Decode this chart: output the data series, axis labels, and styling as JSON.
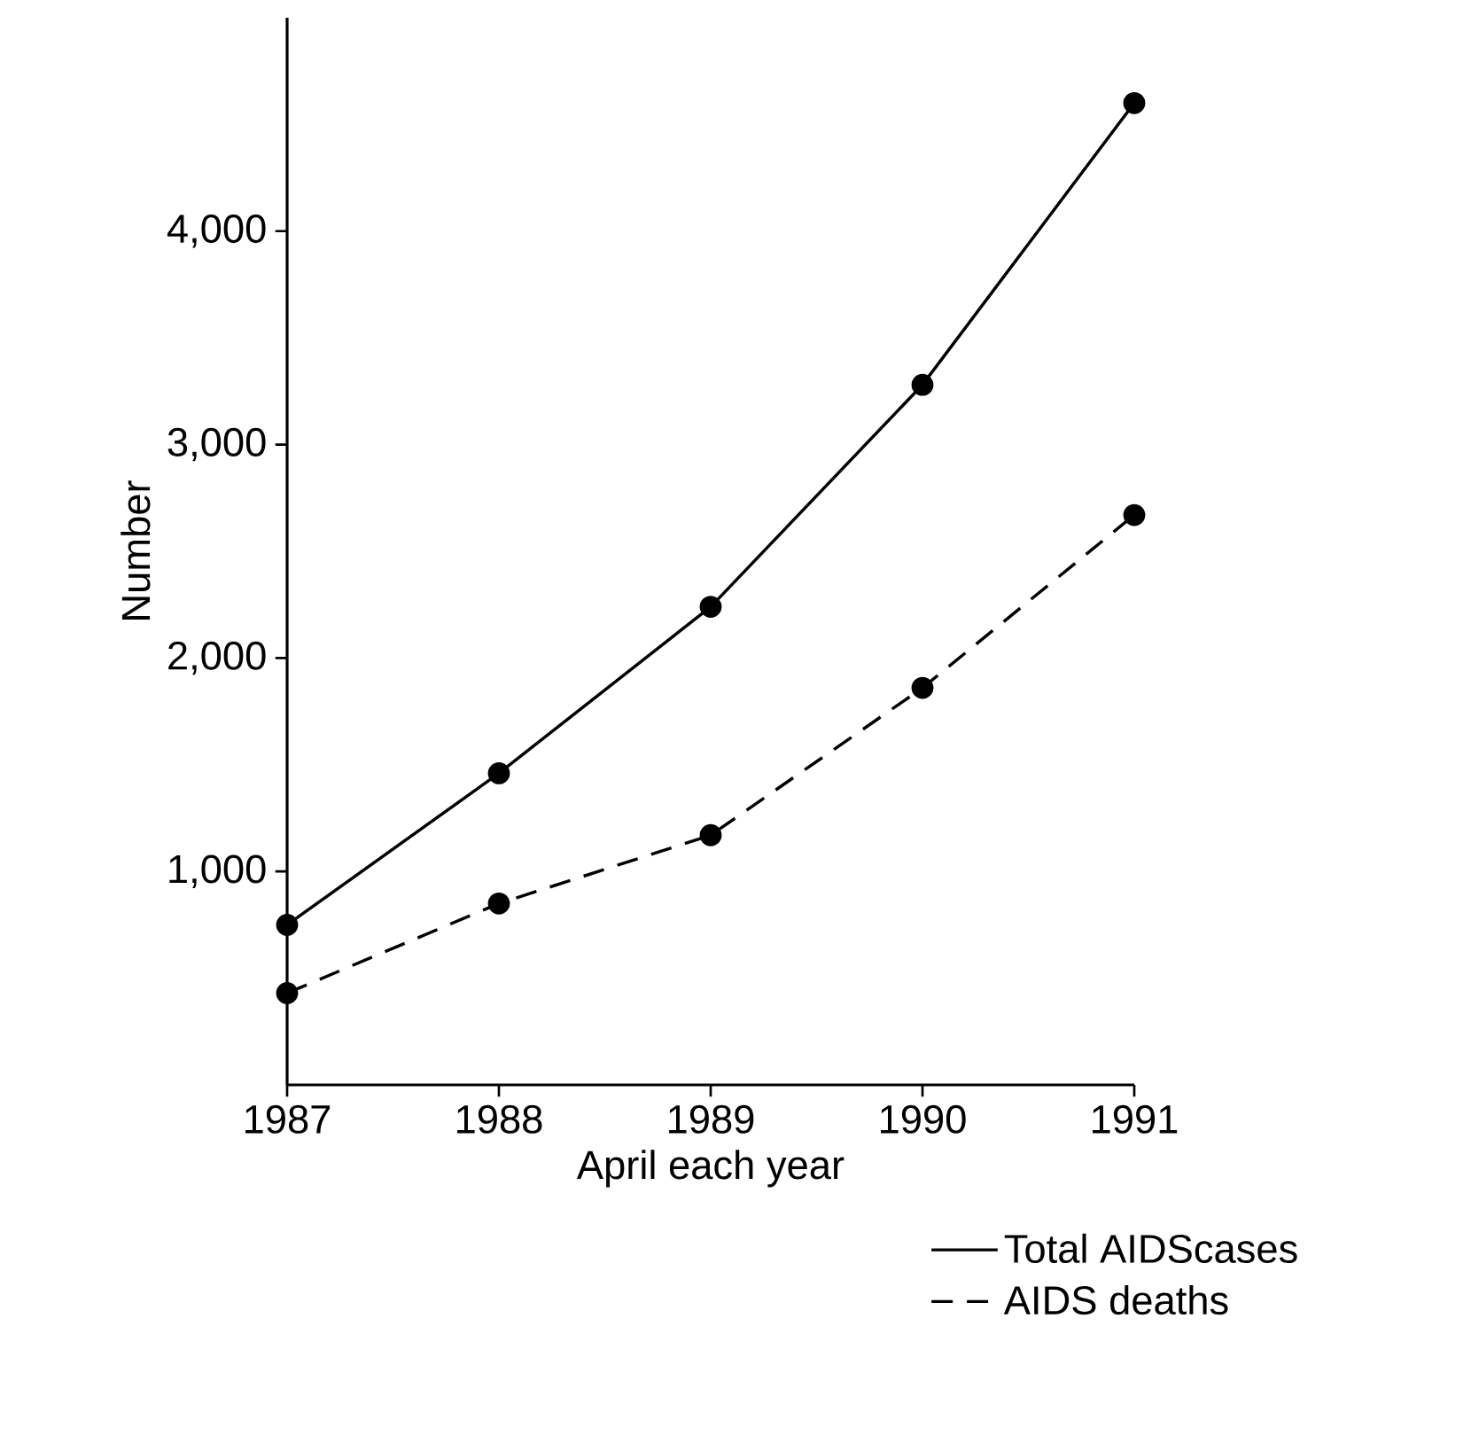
{
  "chart_data": {
    "type": "line",
    "xlabel": "April each year",
    "ylabel": "Number",
    "x": [
      1987,
      1988,
      1989,
      1990,
      1991
    ],
    "series": [
      {
        "name": "Total AIDScases",
        "color": "#000000",
        "line_style": "solid",
        "values": [
          750,
          1460,
          2240,
          3280,
          4600
        ]
      },
      {
        "name": "AIDS deaths",
        "color": "#000000",
        "line_style": "dashed",
        "values": [
          430,
          850,
          1170,
          1860,
          2670
        ]
      }
    ],
    "xlim": [
      1987,
      1991
    ],
    "ylim": [
      0,
      5000
    ],
    "xticks": [
      1987,
      1988,
      1989,
      1990,
      1991
    ],
    "yticks": [
      {
        "value": 1000,
        "label": "1,000"
      },
      {
        "value": 2000,
        "label": "2,000"
      },
      {
        "value": 3000,
        "label": "3,000"
      },
      {
        "value": 4000,
        "label": "4,000"
      }
    ],
    "marker": "circle",
    "grid": false,
    "legend": "bottom right"
  }
}
